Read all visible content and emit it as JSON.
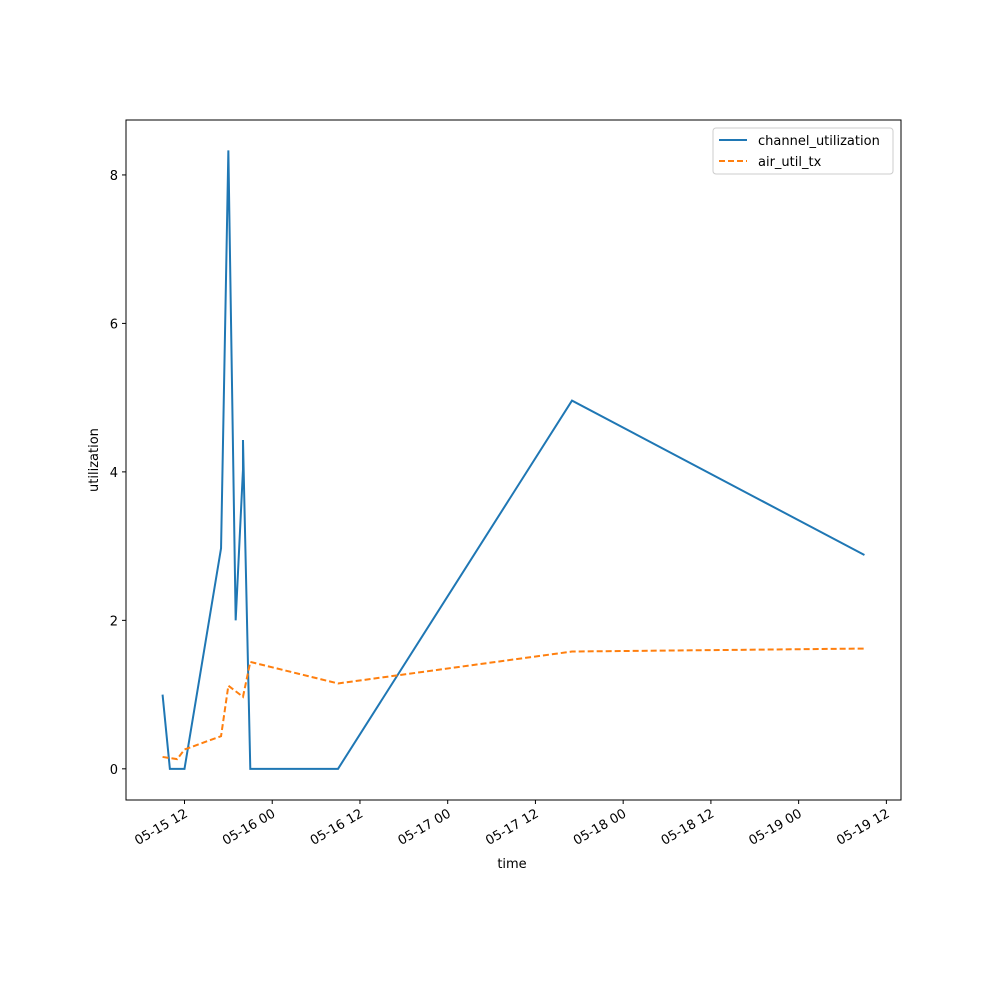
{
  "chart_data": {
    "type": "line",
    "xlabel": "time",
    "ylabel": "utilization",
    "series": [
      {
        "name": "channel_utilization",
        "color": "#1f77b4",
        "dash": "solid",
        "x": [
          "05-15 09",
          "05-15 10",
          "05-15 12",
          "05-15 17",
          "05-15 18",
          "05-15 19",
          "05-15 20",
          "05-15 20",
          "05-15 21",
          "05-16 09",
          "05-17 17",
          "05-19 09"
        ],
        "values": [
          1.0,
          0,
          0,
          2.97,
          8.33,
          2.0,
          4.03,
          4.43,
          0,
          0,
          4.96,
          2.88
        ]
      },
      {
        "name": "air_util_tx",
        "color": "#ff7f0e",
        "dash": "dashed",
        "x": [
          "05-15 09",
          "05-15 11",
          "05-15 12",
          "05-15 17",
          "05-15 18",
          "05-15 20",
          "05-15 21",
          "05-16 09",
          "05-17 17",
          "05-19 09"
        ],
        "values": [
          0.16,
          0.13,
          0.26,
          0.44,
          1.12,
          0.97,
          1.44,
          1.15,
          1.58,
          1.62
        ]
      }
    ],
    "xlim": [
      "05-15 04",
      "05-19 14"
    ],
    "xticks": [
      "05-15 12",
      "05-16 00",
      "05-16 12",
      "05-17 00",
      "05-17 12",
      "05-18 00",
      "05-18 12",
      "05-19 00",
      "05-19 12"
    ],
    "ylim": [
      -0.42,
      8.74
    ],
    "yticks": [
      0,
      2,
      4,
      6,
      8
    ],
    "legend": "upper right"
  }
}
